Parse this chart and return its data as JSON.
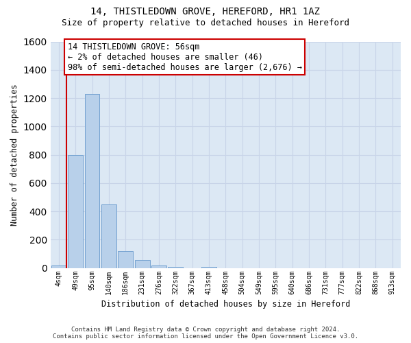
{
  "title_line1": "14, THISTLEDOWN GROVE, HEREFORD, HR1 1AZ",
  "title_line2": "Size of property relative to detached houses in Hereford",
  "xlabel": "Distribution of detached houses by size in Hereford",
  "ylabel": "Number of detached properties",
  "footnote": "Contains HM Land Registry data © Crown copyright and database right 2024.\nContains public sector information licensed under the Open Government Licence v3.0.",
  "categories": [
    "4sqm",
    "49sqm",
    "95sqm",
    "140sqm",
    "186sqm",
    "231sqm",
    "276sqm",
    "322sqm",
    "367sqm",
    "413sqm",
    "458sqm",
    "504sqm",
    "549sqm",
    "595sqm",
    "640sqm",
    "686sqm",
    "731sqm",
    "777sqm",
    "822sqm",
    "868sqm",
    "913sqm"
  ],
  "values": [
    20,
    800,
    1230,
    450,
    120,
    55,
    20,
    10,
    0,
    10,
    0,
    0,
    0,
    0,
    0,
    0,
    0,
    0,
    0,
    0,
    0
  ],
  "bar_color": "#b8d0ea",
  "bar_edge_color": "#6699cc",
  "highlight_line_color": "#cc0000",
  "ylim": [
    0,
    1600
  ],
  "yticks": [
    0,
    200,
    400,
    600,
    800,
    1000,
    1200,
    1400,
    1600
  ],
  "annotation_line1": "14 THISTLEDOWN GROVE: 56sqm",
  "annotation_line2": "← 2% of detached houses are smaller (46)",
  "annotation_line3": "98% of semi-detached houses are larger (2,676) →",
  "annotation_box_color": "#ffffff",
  "annotation_border_color": "#cc0000",
  "grid_color": "#c8d4e8",
  "bg_color": "#dce8f4",
  "title_fontsize": 10,
  "subtitle_fontsize": 9,
  "annotation_fontsize": 8.5
}
